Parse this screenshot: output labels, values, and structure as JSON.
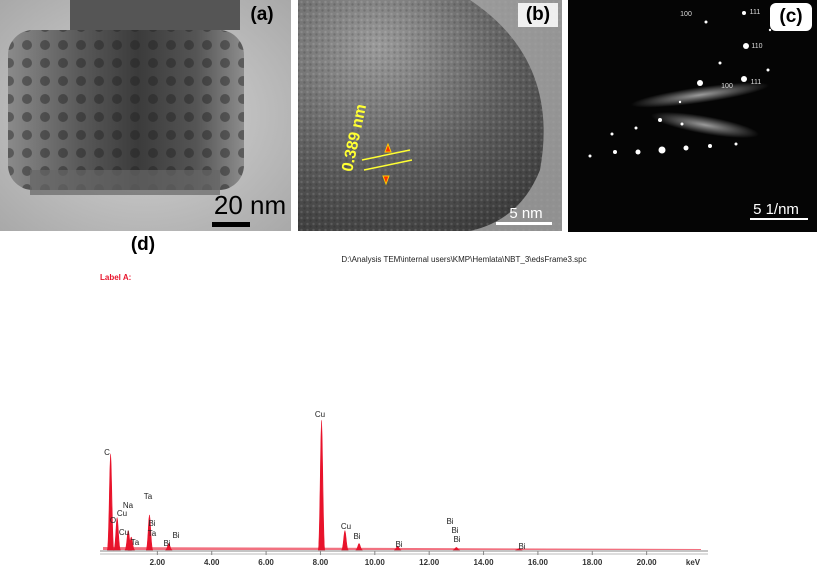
{
  "panels": [
    {
      "label": "(a)",
      "scale_bar": "20 nm"
    },
    {
      "label": "(b)",
      "scale_bar": "5 nm",
      "annotation": "0.389 nm"
    },
    {
      "label": "(c)",
      "scale_bar": "5 1/nm",
      "spot_labels": [
        "100",
        "111",
        "110",
        "100",
        "111"
      ]
    }
  ],
  "chart_data": {
    "type": "spectrum",
    "panel_label": "(d)",
    "file_path": "D:\\Analysis TEM\\internal users\\KMP\\Hemlata\\NBT_3\\edsFrame3.spc",
    "series_label": "Label A:",
    "x_label": "keV",
    "color": "#e8132b",
    "xlim": [
      0,
      22
    ],
    "xticks": [
      {
        "value": 2,
        "label": "2.00"
      },
      {
        "value": 4,
        "label": "4.00"
      },
      {
        "value": 6,
        "label": "6.00"
      },
      {
        "value": 8,
        "label": "8.00"
      },
      {
        "value": 10,
        "label": "10.00"
      },
      {
        "value": 12,
        "label": "12.00"
      },
      {
        "value": 14,
        "label": "14.00"
      },
      {
        "value": 16,
        "label": "16.00"
      },
      {
        "value": 18,
        "label": "18.00"
      },
      {
        "value": 20,
        "label": "20.00"
      }
    ],
    "peaks": {
      "x": [
        0.28,
        0.52,
        0.93,
        1.04,
        1.71,
        2.42,
        8.04,
        8.9,
        9.42,
        10.84,
        13.0,
        15.3
      ],
      "values": [
        74,
        25,
        15,
        10,
        27,
        5,
        100,
        15,
        5,
        3,
        2,
        1
      ]
    },
    "peak_labels": [
      "C",
      "Cu",
      "Na",
      "Cu",
      "O",
      "Ta",
      "Cu",
      "Ta",
      "Bi",
      "Ta",
      "Bi",
      "Bi",
      "Cu",
      "Bi",
      "Bi",
      "Bi",
      "Bi",
      "Bi",
      "Bi"
    ]
  }
}
